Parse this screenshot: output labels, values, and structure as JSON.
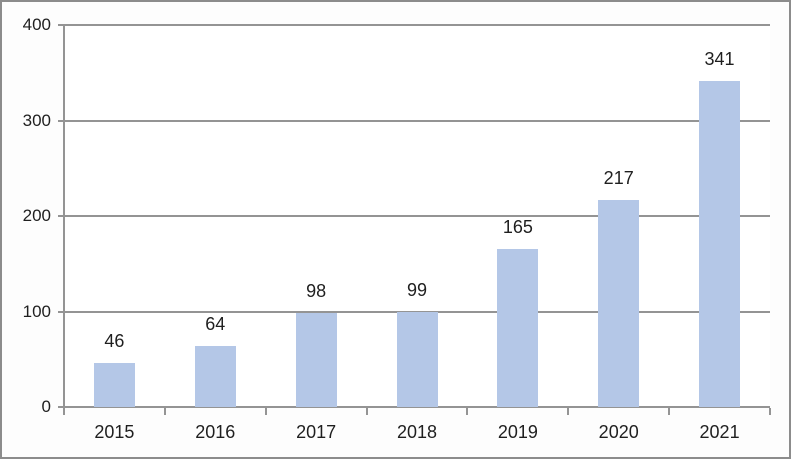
{
  "chart_data": {
    "type": "bar",
    "categories": [
      "2015",
      "2016",
      "2017",
      "2018",
      "2019",
      "2020",
      "2021"
    ],
    "values": [
      46,
      64,
      98,
      99,
      165,
      217,
      341
    ],
    "title": "",
    "xlabel": "",
    "ylabel": "",
    "ylim": [
      0,
      400
    ],
    "yticks": [
      0,
      100,
      200,
      300,
      400
    ],
    "grid": "horizontal",
    "legend": "none",
    "data_labels": [
      46,
      64,
      98,
      99,
      165,
      217,
      341
    ]
  },
  "colors": {
    "bar_fill": "#b4c7e7",
    "gridline": "#949494",
    "axis": "#949494",
    "text": "#1f1f1f",
    "frame_border": "#8c8c8c",
    "plot_background": "#ffffff",
    "canvas_background": "#fdfdfd"
  }
}
